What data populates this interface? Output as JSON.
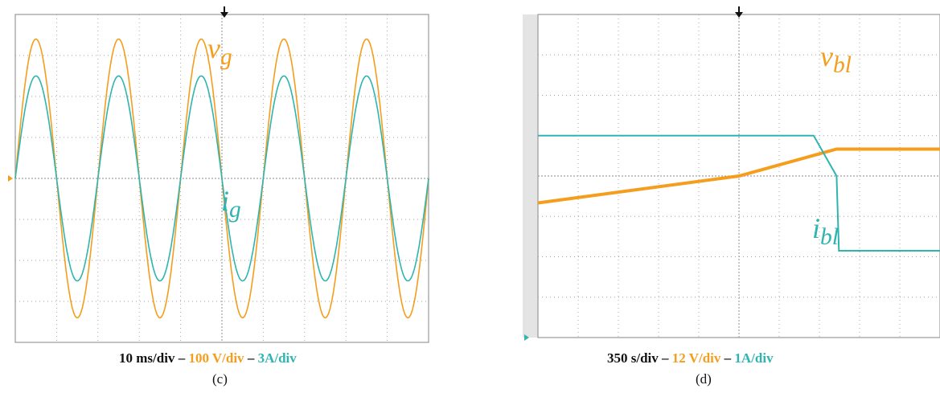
{
  "colors": {
    "voltage": "#f59d1c",
    "current": "#2fb4b0",
    "grid": "#a0a0a0",
    "bg_strip": "#e4e4e4"
  },
  "panels": {
    "c": {
      "label": "(c)",
      "scale": {
        "time": "10 ms/div",
        "sep1": " – ",
        "voltage": "100 V/div",
        "sep2": " – ",
        "current": "3A/div"
      },
      "trace_labels": {
        "voltage_main": "v",
        "voltage_sub": "g",
        "current_main": "i",
        "current_sub": "g"
      }
    },
    "d": {
      "label": "(d)",
      "scale": {
        "time": "350 s/div",
        "sep1": " – ",
        "voltage": "12 V/div",
        "sep2": " – ",
        "current": "1A/div"
      },
      "trace_labels": {
        "voltage_main": "v",
        "voltage_sub": "bl",
        "current_main": "i",
        "current_sub": "bl"
      }
    }
  },
  "chart_data": [
    {
      "type": "line",
      "panel": "c",
      "x_units": "ms",
      "xlim": [
        0,
        100
      ],
      "grid": true,
      "series": [
        {
          "name": "vg",
          "units": "V",
          "waveform": "sine",
          "frequency_hz": 50,
          "amplitude": 340,
          "phase_deg": 0
        },
        {
          "name": "ig",
          "units": "A",
          "waveform": "sine",
          "frequency_hz": 50,
          "amplitude": 7.5,
          "phase_deg": 0
        }
      ]
    },
    {
      "type": "line",
      "panel": "d",
      "x_units": "s",
      "xlim": [
        0,
        3500
      ],
      "grid": true,
      "series": [
        {
          "name": "vbl",
          "units": "V",
          "x": [
            0,
            1750,
            2600,
            3500
          ],
          "y": [
            -8,
            0,
            8,
            8
          ]
        },
        {
          "name": "ibl",
          "units": "A",
          "x": [
            0,
            2400,
            2600,
            2620,
            3500
          ],
          "y": [
            1,
            1,
            0,
            -1.85,
            -1.85
          ]
        }
      ]
    }
  ]
}
